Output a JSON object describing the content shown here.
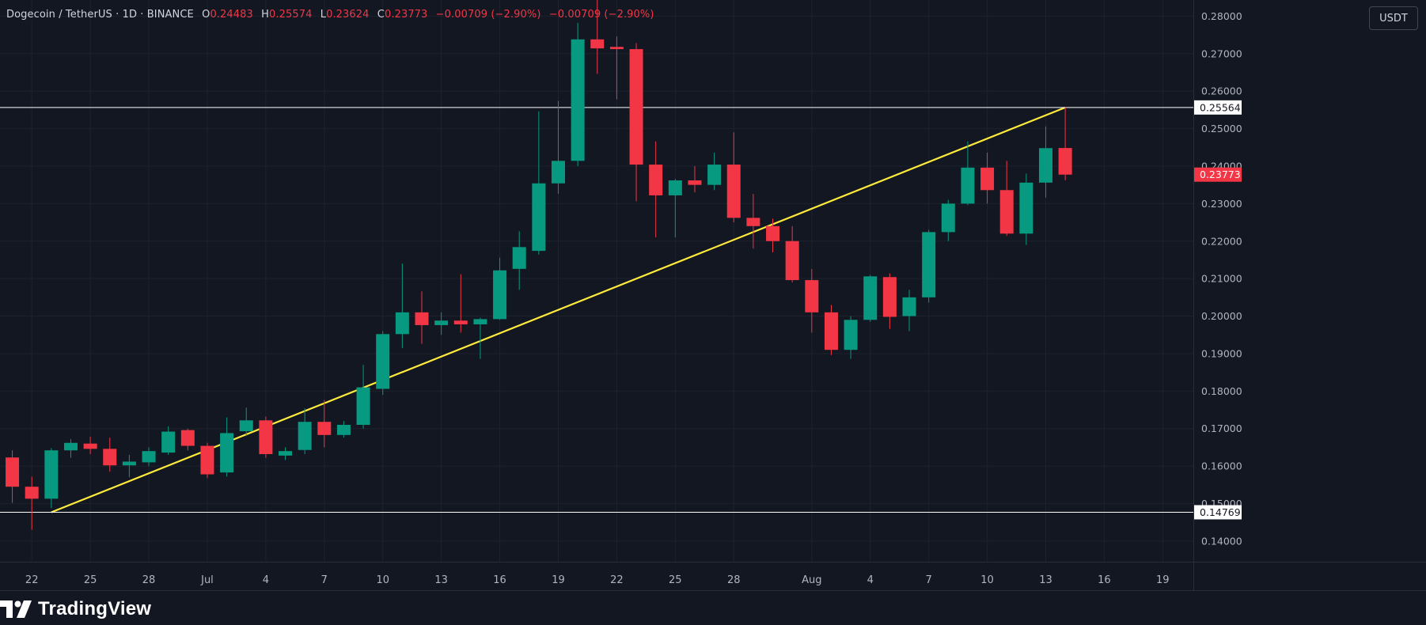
{
  "legend": {
    "symbol": "Dogecoin / TetherUS · 1D · BINANCE",
    "o_label": "O",
    "o_value": "0.24483",
    "h_label": "H",
    "h_value": "0.25574",
    "l_label": "L",
    "l_value": "0.23624",
    "c_label": "C",
    "c_value": "0.23773",
    "change1": "−0.00709 (−2.90%)",
    "change2": "−0.00709 (−2.90%)"
  },
  "currency_button": "USDT",
  "brand": "TradingView",
  "colors": {
    "up": "#089981",
    "down": "#f23645",
    "trendline": "#ffeb3b",
    "hline": "#ffffff",
    "background": "#131722",
    "grid": "#1e222d",
    "axis_text": "#b2b5be"
  },
  "chart_data": {
    "type": "candlestick",
    "title": "",
    "xlabel": "",
    "ylabel": "",
    "ylim": [
      0.1345,
      0.2843
    ],
    "grid": true,
    "y_ticks": [
      "0.28000",
      "0.27000",
      "0.26000",
      "0.25000",
      "0.24000",
      "0.23000",
      "0.22000",
      "0.21000",
      "0.20000",
      "0.19000",
      "0.18000",
      "0.17000",
      "0.16000",
      "0.15000",
      "0.14000"
    ],
    "x_ticks": [
      {
        "label": "22",
        "date": "2023-06-22"
      },
      {
        "label": "25",
        "date": "2023-06-25"
      },
      {
        "label": "28",
        "date": "2023-06-28"
      },
      {
        "label": "Jul",
        "date": "2023-07-01"
      },
      {
        "label": "4",
        "date": "2023-07-04"
      },
      {
        "label": "7",
        "date": "2023-07-07"
      },
      {
        "label": "10",
        "date": "2023-07-10"
      },
      {
        "label": "13",
        "date": "2023-07-13"
      },
      {
        "label": "16",
        "date": "2023-07-16"
      },
      {
        "label": "19",
        "date": "2023-07-19"
      },
      {
        "label": "22",
        "date": "2023-07-22"
      },
      {
        "label": "25",
        "date": "2023-07-25"
      },
      {
        "label": "28",
        "date": "2023-07-28"
      },
      {
        "label": "Aug",
        "date": "2023-08-01"
      },
      {
        "label": "4",
        "date": "2023-08-04"
      },
      {
        "label": "7",
        "date": "2023-08-07"
      },
      {
        "label": "10",
        "date": "2023-08-10"
      },
      {
        "label": "13",
        "date": "2023-08-13"
      },
      {
        "label": "16",
        "date": "2023-08-16"
      },
      {
        "label": "19",
        "date": "2023-08-19"
      }
    ],
    "candles": [
      {
        "date": "2023-06-21",
        "o": 0.1623,
        "h": 0.1642,
        "l": 0.1502,
        "c": 0.1545
      },
      {
        "date": "2023-06-22",
        "o": 0.1545,
        "h": 0.1572,
        "l": 0.143,
        "c": 0.1513
      },
      {
        "date": "2023-06-23",
        "o": 0.1513,
        "h": 0.1648,
        "l": 0.1488,
        "c": 0.1642
      },
      {
        "date": "2023-06-24",
        "o": 0.1642,
        "h": 0.1672,
        "l": 0.1622,
        "c": 0.1662
      },
      {
        "date": "2023-06-25",
        "o": 0.166,
        "h": 0.1678,
        "l": 0.1632,
        "c": 0.1646
      },
      {
        "date": "2023-06-26",
        "o": 0.1646,
        "h": 0.1676,
        "l": 0.1585,
        "c": 0.1602
      },
      {
        "date": "2023-06-27",
        "o": 0.1602,
        "h": 0.163,
        "l": 0.157,
        "c": 0.1612
      },
      {
        "date": "2023-06-28",
        "o": 0.161,
        "h": 0.165,
        "l": 0.16,
        "c": 0.164
      },
      {
        "date": "2023-06-29",
        "o": 0.1636,
        "h": 0.1706,
        "l": 0.163,
        "c": 0.1692
      },
      {
        "date": "2023-06-30",
        "o": 0.1696,
        "h": 0.17,
        "l": 0.1642,
        "c": 0.1654
      },
      {
        "date": "2023-07-01",
        "o": 0.1654,
        "h": 0.1662,
        "l": 0.1568,
        "c": 0.1578
      },
      {
        "date": "2023-07-02",
        "o": 0.1583,
        "h": 0.173,
        "l": 0.1572,
        "c": 0.1688
      },
      {
        "date": "2023-07-03",
        "o": 0.1693,
        "h": 0.1756,
        "l": 0.168,
        "c": 0.1722
      },
      {
        "date": "2023-07-04",
        "o": 0.1722,
        "h": 0.1732,
        "l": 0.1622,
        "c": 0.1632
      },
      {
        "date": "2023-07-05",
        "o": 0.1628,
        "h": 0.165,
        "l": 0.1616,
        "c": 0.164
      },
      {
        "date": "2023-07-06",
        "o": 0.1643,
        "h": 0.1754,
        "l": 0.1632,
        "c": 0.1718
      },
      {
        "date": "2023-07-07",
        "o": 0.1718,
        "h": 0.1776,
        "l": 0.165,
        "c": 0.1683
      },
      {
        "date": "2023-07-08",
        "o": 0.1683,
        "h": 0.172,
        "l": 0.1676,
        "c": 0.171
      },
      {
        "date": "2023-07-09",
        "o": 0.171,
        "h": 0.187,
        "l": 0.17,
        "c": 0.181
      },
      {
        "date": "2023-07-10",
        "o": 0.1806,
        "h": 0.196,
        "l": 0.179,
        "c": 0.1952
      },
      {
        "date": "2023-07-11",
        "o": 0.1952,
        "h": 0.214,
        "l": 0.1915,
        "c": 0.201
      },
      {
        "date": "2023-07-12",
        "o": 0.201,
        "h": 0.2066,
        "l": 0.1926,
        "c": 0.1976
      },
      {
        "date": "2023-07-13",
        "o": 0.1976,
        "h": 0.201,
        "l": 0.195,
        "c": 0.1988
      },
      {
        "date": "2023-07-14",
        "o": 0.1988,
        "h": 0.2112,
        "l": 0.1956,
        "c": 0.1978
      },
      {
        "date": "2023-07-15",
        "o": 0.1978,
        "h": 0.1996,
        "l": 0.1886,
        "c": 0.1992
      },
      {
        "date": "2023-07-16",
        "o": 0.1992,
        "h": 0.2156,
        "l": 0.199,
        "c": 0.2122
      },
      {
        "date": "2023-07-17",
        "o": 0.2126,
        "h": 0.2226,
        "l": 0.207,
        "c": 0.2184
      },
      {
        "date": "2023-07-18",
        "o": 0.2174,
        "h": 0.2546,
        "l": 0.2164,
        "c": 0.2354
      },
      {
        "date": "2023-07-19",
        "o": 0.2354,
        "h": 0.2574,
        "l": 0.2326,
        "c": 0.2414
      },
      {
        "date": "2023-07-20",
        "o": 0.2414,
        "h": 0.2782,
        "l": 0.24,
        "c": 0.2738
      },
      {
        "date": "2023-07-21",
        "o": 0.2738,
        "h": 0.287,
        "l": 0.2646,
        "c": 0.2714
      },
      {
        "date": "2023-07-22",
        "o": 0.2718,
        "h": 0.2746,
        "l": 0.2578,
        "c": 0.2712
      },
      {
        "date": "2023-07-23",
        "o": 0.2712,
        "h": 0.2728,
        "l": 0.2306,
        "c": 0.2404
      },
      {
        "date": "2023-07-24",
        "o": 0.2404,
        "h": 0.2466,
        "l": 0.221,
        "c": 0.2322
      },
      {
        "date": "2023-07-25",
        "o": 0.2322,
        "h": 0.2366,
        "l": 0.221,
        "c": 0.2362
      },
      {
        "date": "2023-07-26",
        "o": 0.2362,
        "h": 0.24,
        "l": 0.233,
        "c": 0.235
      },
      {
        "date": "2023-07-27",
        "o": 0.235,
        "h": 0.2436,
        "l": 0.2336,
        "c": 0.2404
      },
      {
        "date": "2023-07-28",
        "o": 0.2404,
        "h": 0.249,
        "l": 0.225,
        "c": 0.2262
      },
      {
        "date": "2023-07-29",
        "o": 0.2262,
        "h": 0.2326,
        "l": 0.218,
        "c": 0.224
      },
      {
        "date": "2023-07-30",
        "o": 0.224,
        "h": 0.226,
        "l": 0.217,
        "c": 0.22
      },
      {
        "date": "2023-07-31",
        "o": 0.22,
        "h": 0.224,
        "l": 0.209,
        "c": 0.2096
      },
      {
        "date": "2023-08-01",
        "o": 0.2096,
        "h": 0.2126,
        "l": 0.1956,
        "c": 0.201
      },
      {
        "date": "2023-08-02",
        "o": 0.201,
        "h": 0.203,
        "l": 0.1896,
        "c": 0.191
      },
      {
        "date": "2023-08-03",
        "o": 0.191,
        "h": 0.2,
        "l": 0.1886,
        "c": 0.199
      },
      {
        "date": "2023-08-04",
        "o": 0.199,
        "h": 0.211,
        "l": 0.1985,
        "c": 0.2106
      },
      {
        "date": "2023-08-05",
        "o": 0.2104,
        "h": 0.2114,
        "l": 0.1966,
        "c": 0.1998
      },
      {
        "date": "2023-08-06",
        "o": 0.2,
        "h": 0.207,
        "l": 0.196,
        "c": 0.205
      },
      {
        "date": "2023-08-07",
        "o": 0.205,
        "h": 0.223,
        "l": 0.2036,
        "c": 0.2224
      },
      {
        "date": "2023-08-08",
        "o": 0.2224,
        "h": 0.231,
        "l": 0.22,
        "c": 0.23
      },
      {
        "date": "2023-08-09",
        "o": 0.23,
        "h": 0.2466,
        "l": 0.2296,
        "c": 0.2396
      },
      {
        "date": "2023-08-10",
        "o": 0.2396,
        "h": 0.2436,
        "l": 0.23,
        "c": 0.2336
      },
      {
        "date": "2023-08-11",
        "o": 0.2336,
        "h": 0.2414,
        "l": 0.2214,
        "c": 0.222
      },
      {
        "date": "2023-08-12",
        "o": 0.222,
        "h": 0.238,
        "l": 0.219,
        "c": 0.2356
      },
      {
        "date": "2023-08-13",
        "o": 0.2356,
        "h": 0.2506,
        "l": 0.2316,
        "c": 0.2448
      },
      {
        "date": "2023-08-14",
        "o": 0.24483,
        "h": 0.25574,
        "l": 0.23624,
        "c": 0.23773
      }
    ],
    "horizontal_lines": [
      {
        "value": 0.25564,
        "label": "0.25564"
      },
      {
        "value": 0.14769,
        "label": "0.14769"
      }
    ],
    "trendline": {
      "from": {
        "date": "2023-06-23",
        "value": 0.14769
      },
      "to": {
        "date": "2023-08-14",
        "value": 0.25564
      }
    },
    "last_price": {
      "value": 0.23773,
      "label": "0.23773"
    }
  }
}
